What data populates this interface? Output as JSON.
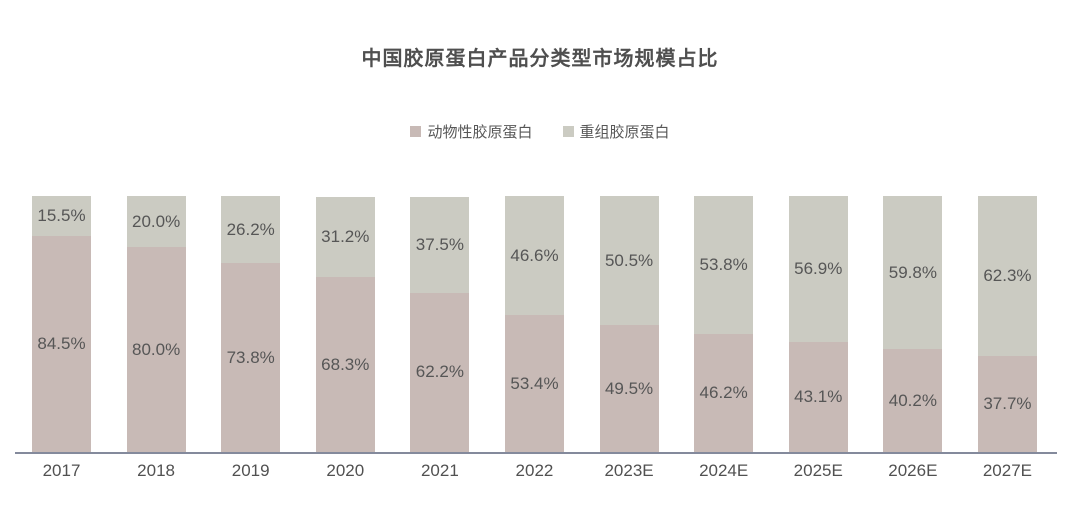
{
  "title": "中国胶原蛋白产品分类型市场规模占比",
  "legend": {
    "items": [
      {
        "label": "动物性胶原蛋白",
        "color": "#c8bab6"
      },
      {
        "label": "重组胶原蛋白",
        "color": "#cbcbc2"
      }
    ]
  },
  "chart_data": {
    "type": "bar",
    "stacked": true,
    "orientation": "vertical",
    "title": "中国胶原蛋白产品分类型市场规模占比",
    "categories": [
      "2017",
      "2018",
      "2019",
      "2020",
      "2021",
      "2022",
      "2023E",
      "2024E",
      "2025E",
      "2026E",
      "2027E"
    ],
    "series": [
      {
        "name": "动物性胶原蛋白",
        "color": "#c8bab6",
        "values": [
          84.5,
          80.0,
          73.8,
          68.3,
          62.2,
          53.4,
          49.5,
          46.2,
          43.1,
          40.2,
          37.7
        ]
      },
      {
        "name": "重组胶原蛋白",
        "color": "#cbcbc2",
        "values": [
          15.5,
          20.0,
          26.2,
          31.2,
          37.5,
          46.6,
          50.5,
          53.8,
          56.9,
          59.8,
          62.3
        ]
      }
    ],
    "value_label_format": "{value}%",
    "value_labels": true,
    "ylim": [
      0,
      100
    ],
    "grid": false,
    "legend_position": "top",
    "label_color": "#565656",
    "axis_line_color": "#848a9c"
  }
}
